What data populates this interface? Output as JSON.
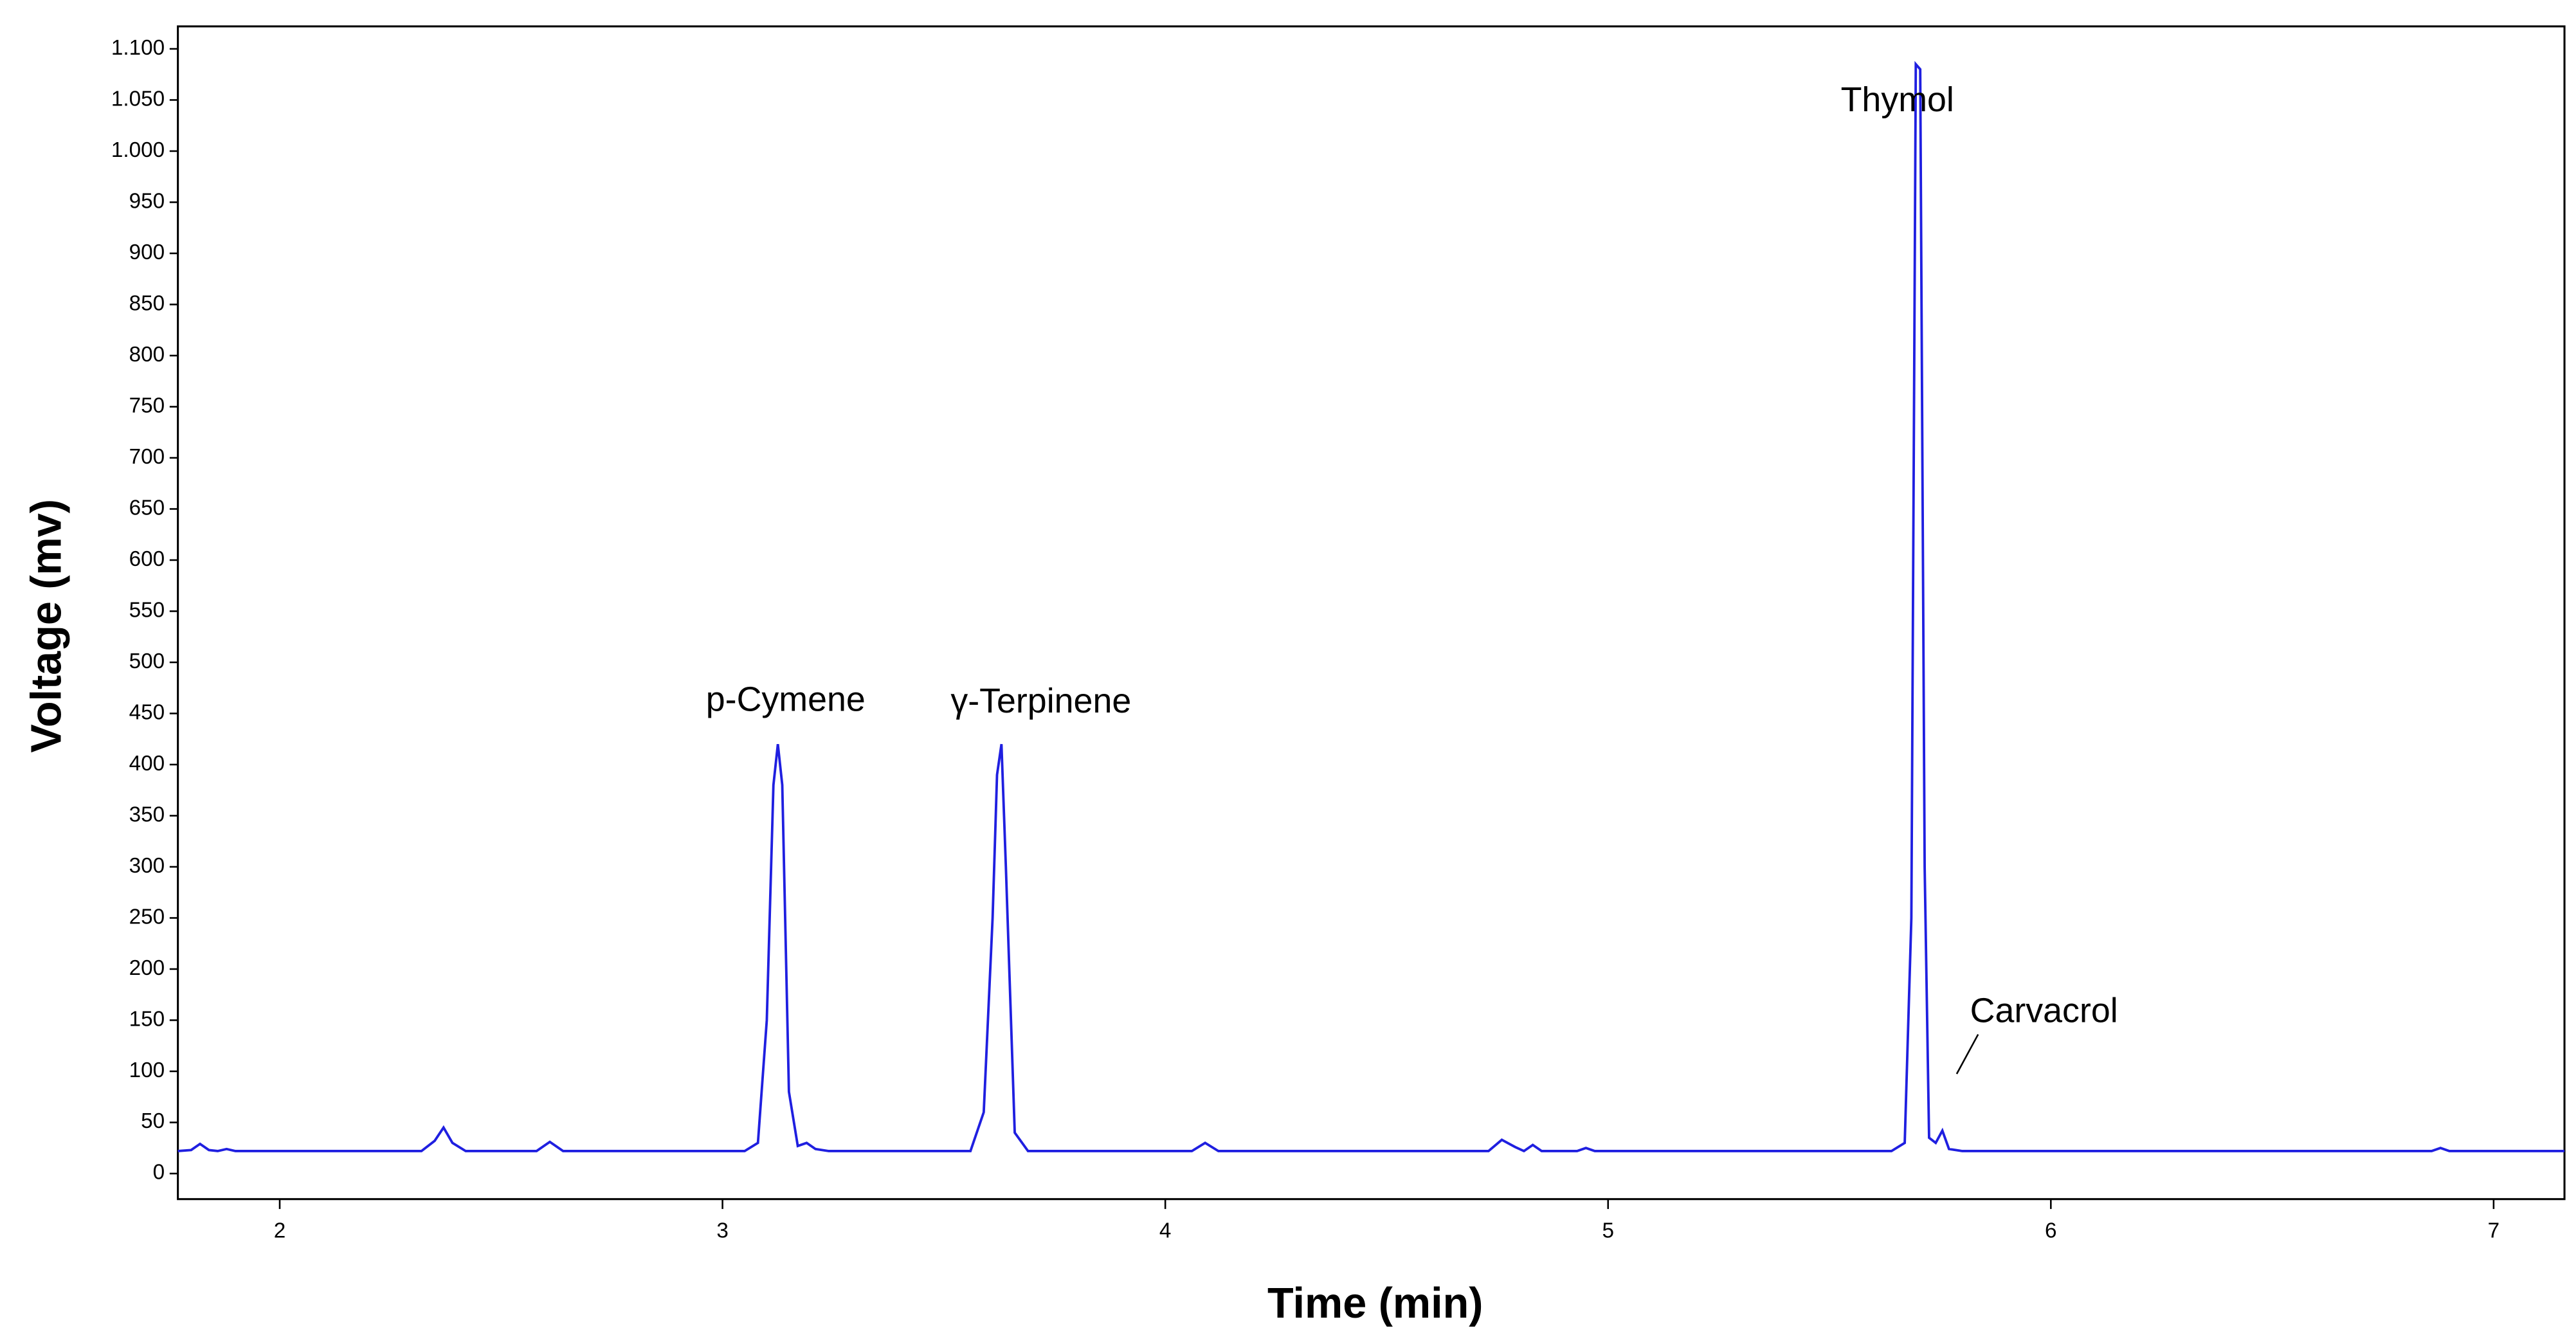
{
  "chart_data": {
    "type": "line",
    "xlabel": "Time (min)",
    "ylabel": "Voltage (mv)",
    "x": [
      1.77,
      1.8,
      1.82,
      1.84,
      1.86,
      1.88,
      1.9,
      2.32,
      2.35,
      2.37,
      2.39,
      2.42,
      2.58,
      2.61,
      2.64,
      3.05,
      3.08,
      3.1,
      3.115,
      3.125,
      3.135,
      3.15,
      3.17,
      3.19,
      3.21,
      3.24,
      3.56,
      3.59,
      3.61,
      3.62,
      3.63,
      3.64,
      3.66,
      3.69,
      4.06,
      4.09,
      4.12,
      4.73,
      4.76,
      4.79,
      4.81,
      4.83,
      4.85,
      4.93,
      4.95,
      4.97,
      5.64,
      5.67,
      5.685,
      5.695,
      5.705,
      5.715,
      5.725,
      5.74,
      5.755,
      5.77,
      5.8,
      6.86,
      6.88,
      6.9,
      7.16
    ],
    "series": [
      {
        "color": "#1f1fe0",
        "values": [
          22,
          23,
          29,
          23,
          22,
          24,
          22,
          22,
          32,
          45,
          30,
          22,
          22,
          31,
          22,
          22,
          30,
          150,
          380,
          420,
          380,
          80,
          27,
          30,
          24,
          22,
          22,
          60,
          250,
          390,
          420,
          300,
          40,
          22,
          22,
          30,
          22,
          22,
          33,
          26,
          22,
          28,
          22,
          22,
          25,
          22,
          22,
          30,
          250,
          1085,
          1080,
          300,
          35,
          30,
          42,
          24,
          22,
          22,
          25,
          22,
          22
        ]
      }
    ],
    "xlim": [
      1.77,
      7.16
    ],
    "xticks": [
      2,
      3,
      4,
      5,
      6,
      7
    ],
    "ylim": [
      -25,
      1122
    ],
    "yticks": [
      0,
      50,
      100,
      150,
      200,
      250,
      300,
      350,
      400,
      450,
      500,
      550,
      600,
      650,
      700,
      750,
      800,
      850,
      900,
      950,
      {
        "value": 1000,
        "label": "1.000"
      },
      {
        "value": 1050,
        "label": "1.050"
      },
      {
        "value": 1100,
        "label": "1.100"
      }
    ],
    "annotations": [
      "p-Cymene",
      "γ-Terpinene",
      "Thymol",
      "Carvacrol"
    ]
  }
}
